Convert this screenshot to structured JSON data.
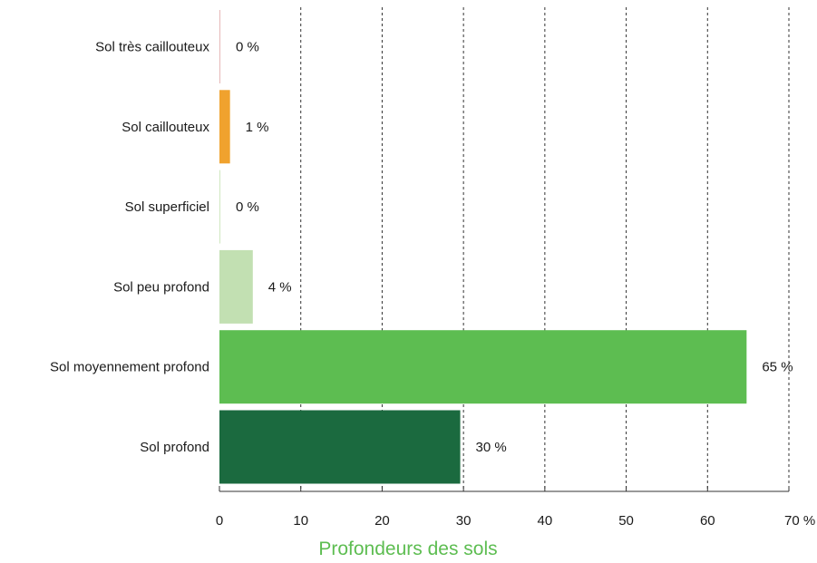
{
  "chart_data": {
    "type": "bar",
    "orientation": "horizontal",
    "categories": [
      "Sol très caillouteux",
      "Sol caillouteux",
      "Sol superficiel",
      "Sol peu profond",
      "Sol moyennement profond",
      "Sol profond"
    ],
    "values": [
      0.1,
      1.3,
      0.1,
      4.1,
      64.8,
      29.6
    ],
    "value_labels": [
      "0 %",
      "1 %",
      "0 %",
      "4 %",
      "65 %",
      "30 %"
    ],
    "bar_colors": [
      "#e6b8b8",
      "#f0a22e",
      "#d0e8c0",
      "#c2e0b2",
      "#5dbd51",
      "#1b6a3f"
    ],
    "xlabel": "Profondeurs des sols",
    "xlabel_color": "#5dbd51",
    "xlim": [
      0,
      70
    ],
    "xticks": [
      0,
      10,
      20,
      30,
      40,
      50,
      60,
      70
    ],
    "xtick_labels": [
      "0",
      "10",
      "20",
      "30",
      "40",
      "50",
      "60",
      "70 %"
    ],
    "grid": "vertical dashed",
    "legend": "none"
  }
}
